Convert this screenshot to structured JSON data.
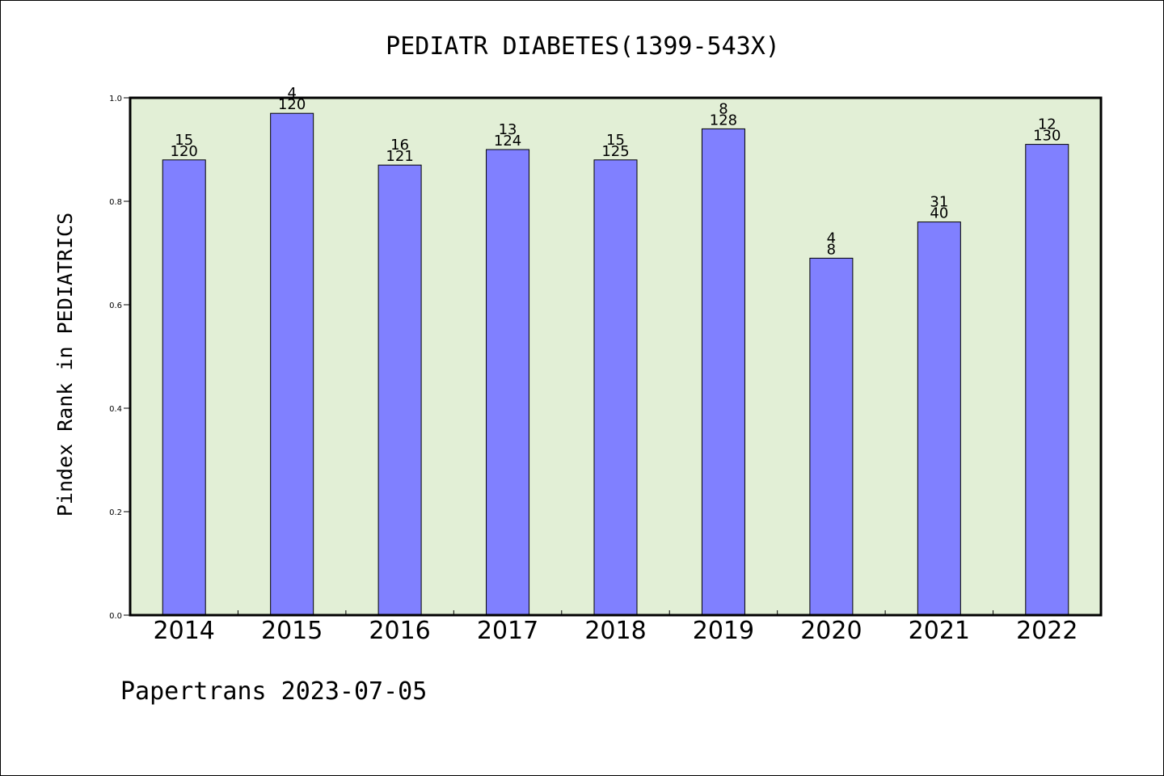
{
  "chart_data": {
    "type": "bar",
    "title": "PEDIATR DIABETES(1399-543X)",
    "ylabel": "Pindex Rank in PEDIATRICS",
    "footer": "Papertrans 2023-07-05",
    "ylim": [
      0,
      1.0
    ],
    "yticks": [
      "0.0",
      "0.2",
      "0.4",
      "0.6",
      "0.8",
      "1.0"
    ],
    "categories": [
      "2014",
      "2015",
      "2016",
      "2017",
      "2018",
      "2019",
      "2020",
      "2021",
      "2022"
    ],
    "values": [
      0.88,
      0.97,
      0.87,
      0.9,
      0.88,
      0.94,
      0.69,
      0.76,
      0.91
    ],
    "labels_top": [
      "15",
      "4",
      "16",
      "13",
      "15",
      "8",
      "4",
      "31",
      "12"
    ],
    "labels_bottom": [
      "120",
      "120",
      "121",
      "124",
      "125",
      "128",
      "8",
      "40",
      "130"
    ],
    "grid": false,
    "colors": {
      "bar": "#8080ff",
      "plot_background": "#e2efd6",
      "axis": "#000000"
    }
  }
}
